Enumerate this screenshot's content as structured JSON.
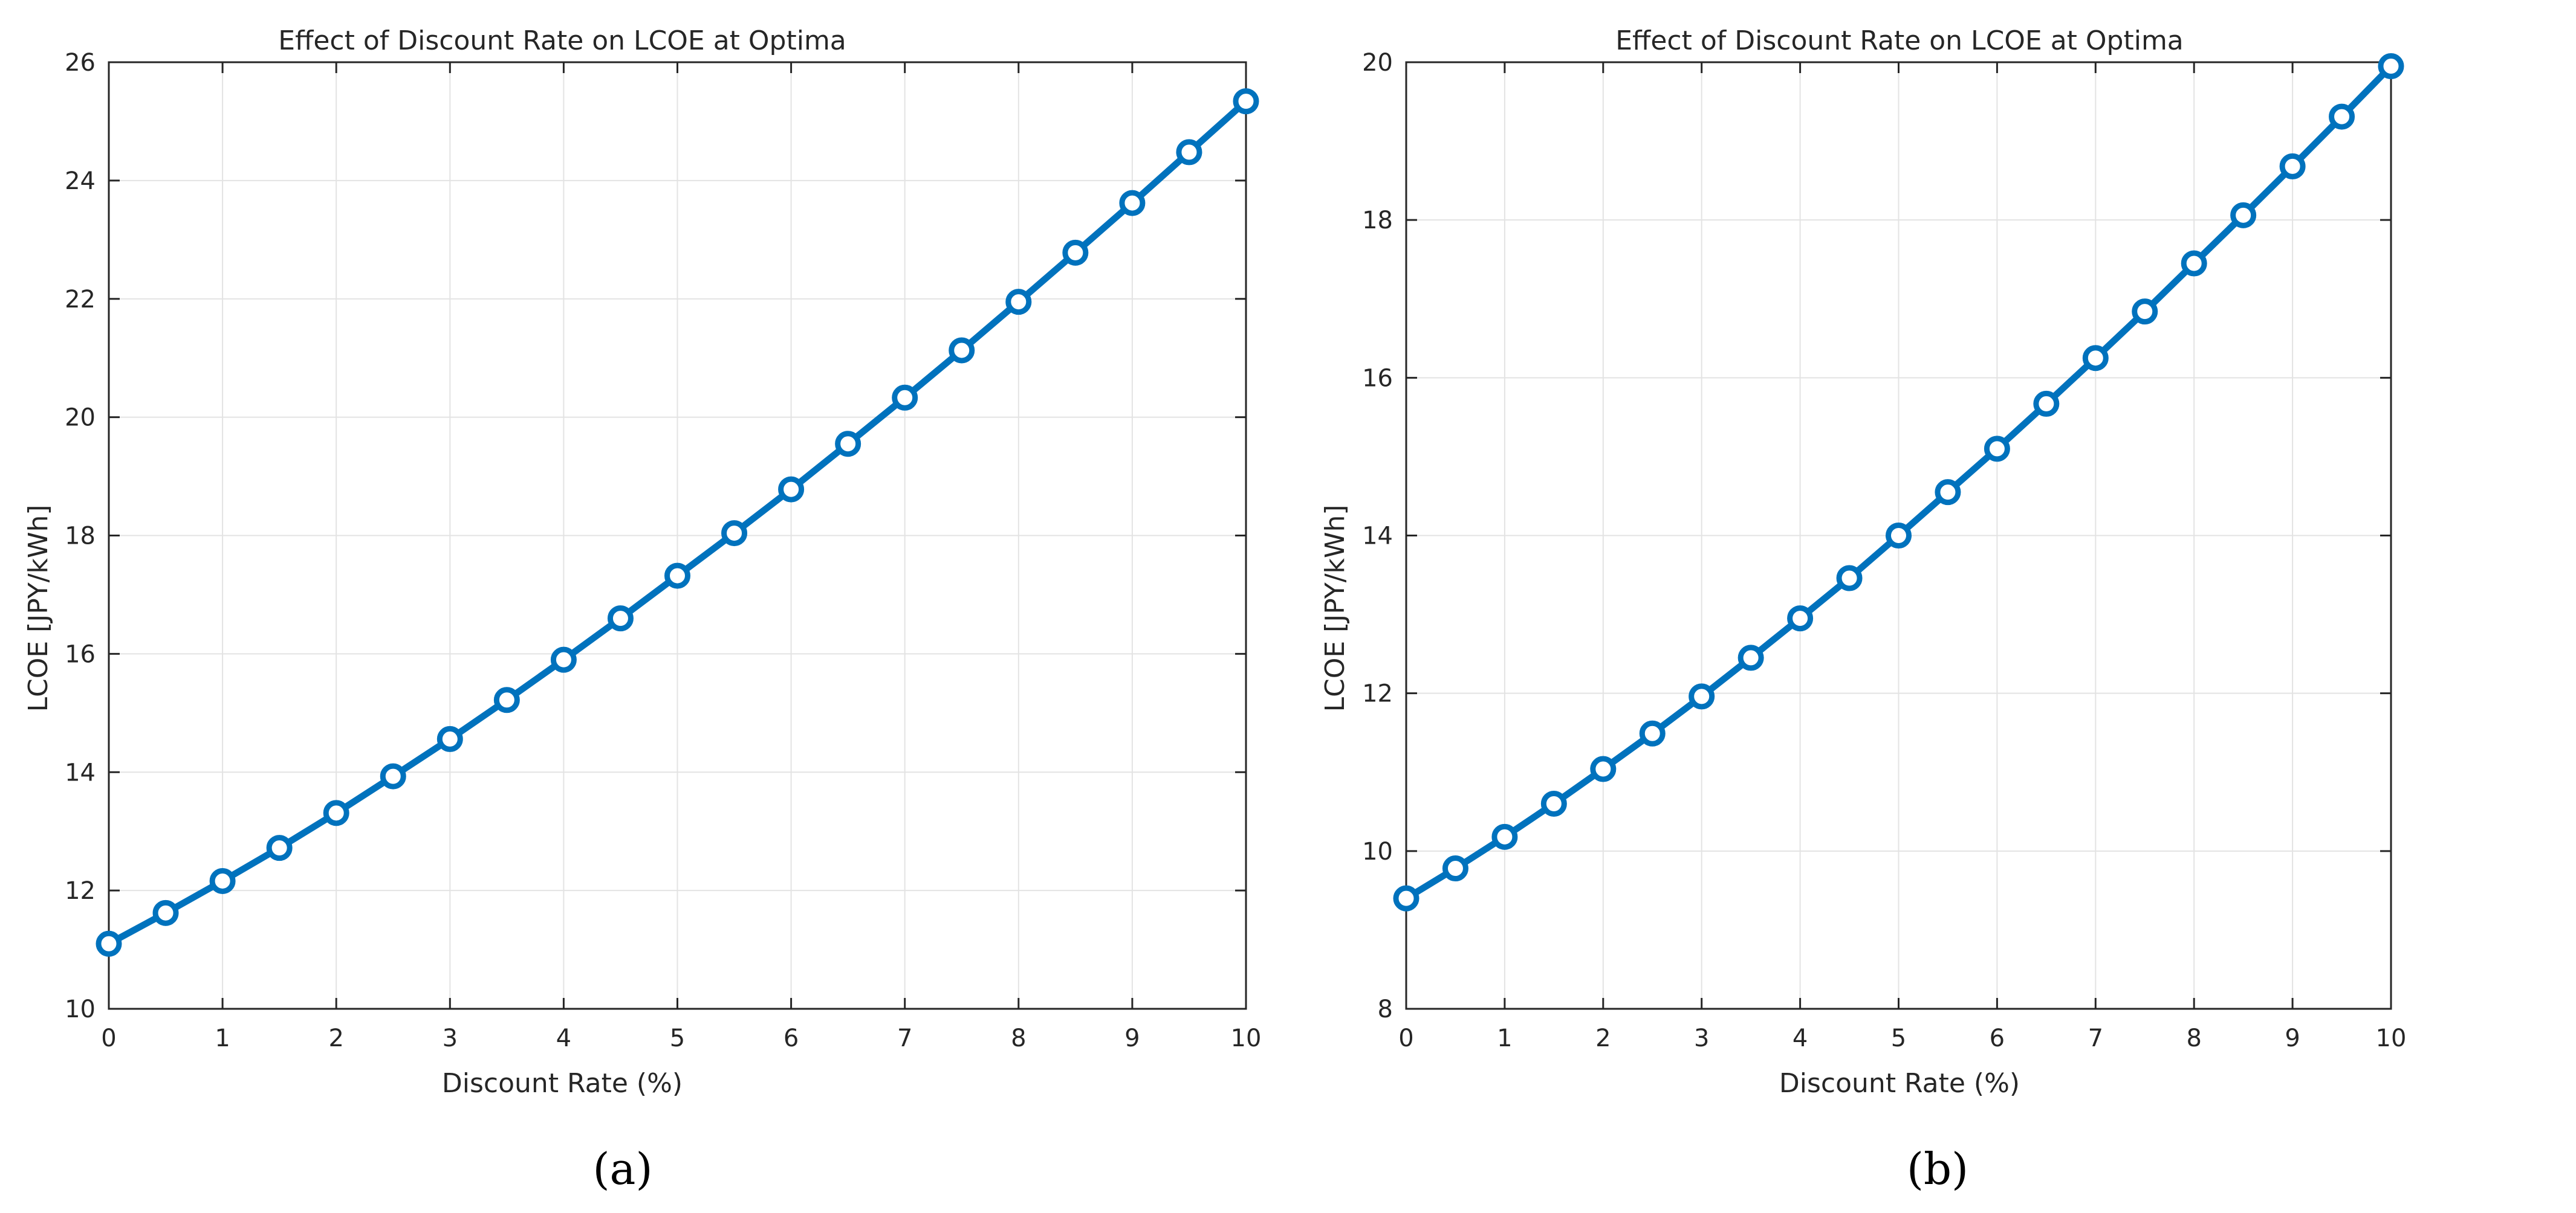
{
  "figure": {
    "caption_a": "(a)",
    "caption_b": "(b)"
  },
  "colors": {
    "series": "#0072BD",
    "grid": "#e3e3e3",
    "axis": "#262626"
  },
  "chart_data": [
    {
      "type": "line",
      "title": "Effect of Discount Rate on LCOE at Optima",
      "xlabel": "Discount Rate (%)",
      "ylabel": "LCOE [JPY/kWh]",
      "xlim": [
        0,
        10
      ],
      "ylim": [
        10,
        26
      ],
      "xticks": [
        0,
        1,
        2,
        3,
        4,
        5,
        6,
        7,
        8,
        9,
        10
      ],
      "yticks": [
        10,
        12,
        14,
        16,
        18,
        20,
        22,
        24,
        26
      ],
      "grid": true,
      "marker": "circle",
      "x": [
        0,
        0.5,
        1,
        1.5,
        2,
        2.5,
        3,
        3.5,
        4,
        4.5,
        5,
        5.5,
        6,
        6.5,
        7,
        7.5,
        8,
        8.5,
        9,
        9.5,
        10
      ],
      "series": [
        {
          "name": "LCOE",
          "values": [
            11.1,
            11.62,
            12.16,
            12.72,
            13.31,
            13.93,
            14.56,
            15.22,
            15.9,
            16.6,
            17.32,
            18.04,
            18.78,
            19.55,
            20.33,
            21.13,
            21.95,
            22.78,
            23.62,
            24.48,
            25.34
          ]
        }
      ]
    },
    {
      "type": "line",
      "title": "Effect of Discount Rate on LCOE at Optima",
      "xlabel": "Discount Rate (%)",
      "ylabel": "LCOE [JPY/kWh]",
      "xlim": [
        0,
        10
      ],
      "ylim": [
        8,
        20
      ],
      "xticks": [
        0,
        1,
        2,
        3,
        4,
        5,
        6,
        7,
        8,
        9,
        10
      ],
      "yticks": [
        8,
        10,
        12,
        14,
        16,
        18,
        20
      ],
      "grid": true,
      "marker": "circle",
      "x": [
        0,
        0.5,
        1,
        1.5,
        2,
        2.5,
        3,
        3.5,
        4,
        4.5,
        5,
        5.5,
        6,
        6.5,
        7,
        7.5,
        8,
        8.5,
        9,
        9.5,
        10
      ],
      "series": [
        {
          "name": "LCOE",
          "values": [
            9.4,
            9.78,
            10.18,
            10.6,
            11.04,
            11.49,
            11.96,
            12.45,
            12.95,
            13.46,
            14.0,
            14.55,
            15.1,
            15.67,
            16.25,
            16.84,
            17.45,
            18.06,
            18.68,
            19.31,
            19.95
          ]
        }
      ]
    }
  ]
}
